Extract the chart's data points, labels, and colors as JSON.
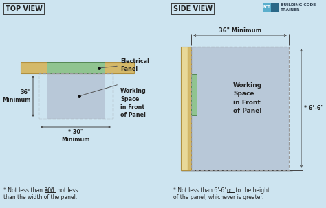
{
  "bg_color": "#cde4f0",
  "title_top_view": "TOP VIEW",
  "title_side_view": "SIDE VIEW",
  "footnote_left_1": "* Not less than 30\" ",
  "footnote_left_and": "and",
  "footnote_left_2": " not less",
  "footnote_left_3": "than the width of the panel.",
  "footnote_right_1": "* Not less than 6’-6\" ",
  "footnote_right_or": "or",
  "footnote_right_2": " to the height",
  "footnote_right_3": "of the panel, whichever is greater.",
  "label_electrical_panel": "Electrical\nPanel",
  "label_working_space_top": "Working\nSpace\nin Front\nof Panel",
  "label_working_space_side": "Working\nSpace\nin Front\nof Panel",
  "label_36_min_left": "36\"\nMinimum",
  "label_30_min": "* 30\"\nMinimum",
  "label_36_min_top": "36\" Minimum",
  "label_6_6": "* 6’-6\"",
  "panel_gray": "#b8c8d8",
  "panel_green": "#90c490",
  "wall_tan": "#d4b96a",
  "wall_tan_light": "#e8d898",
  "wall_line": "#b09040",
  "dashed_color": "#999999",
  "text_color": "#222222",
  "box_border_color": "#333333",
  "arrow_color": "#555555",
  "logo_blue_light": "#5aaecc",
  "logo_blue_dark": "#2a6888",
  "logo_text_color": "#334455",
  "dim_line_color": "#444444"
}
